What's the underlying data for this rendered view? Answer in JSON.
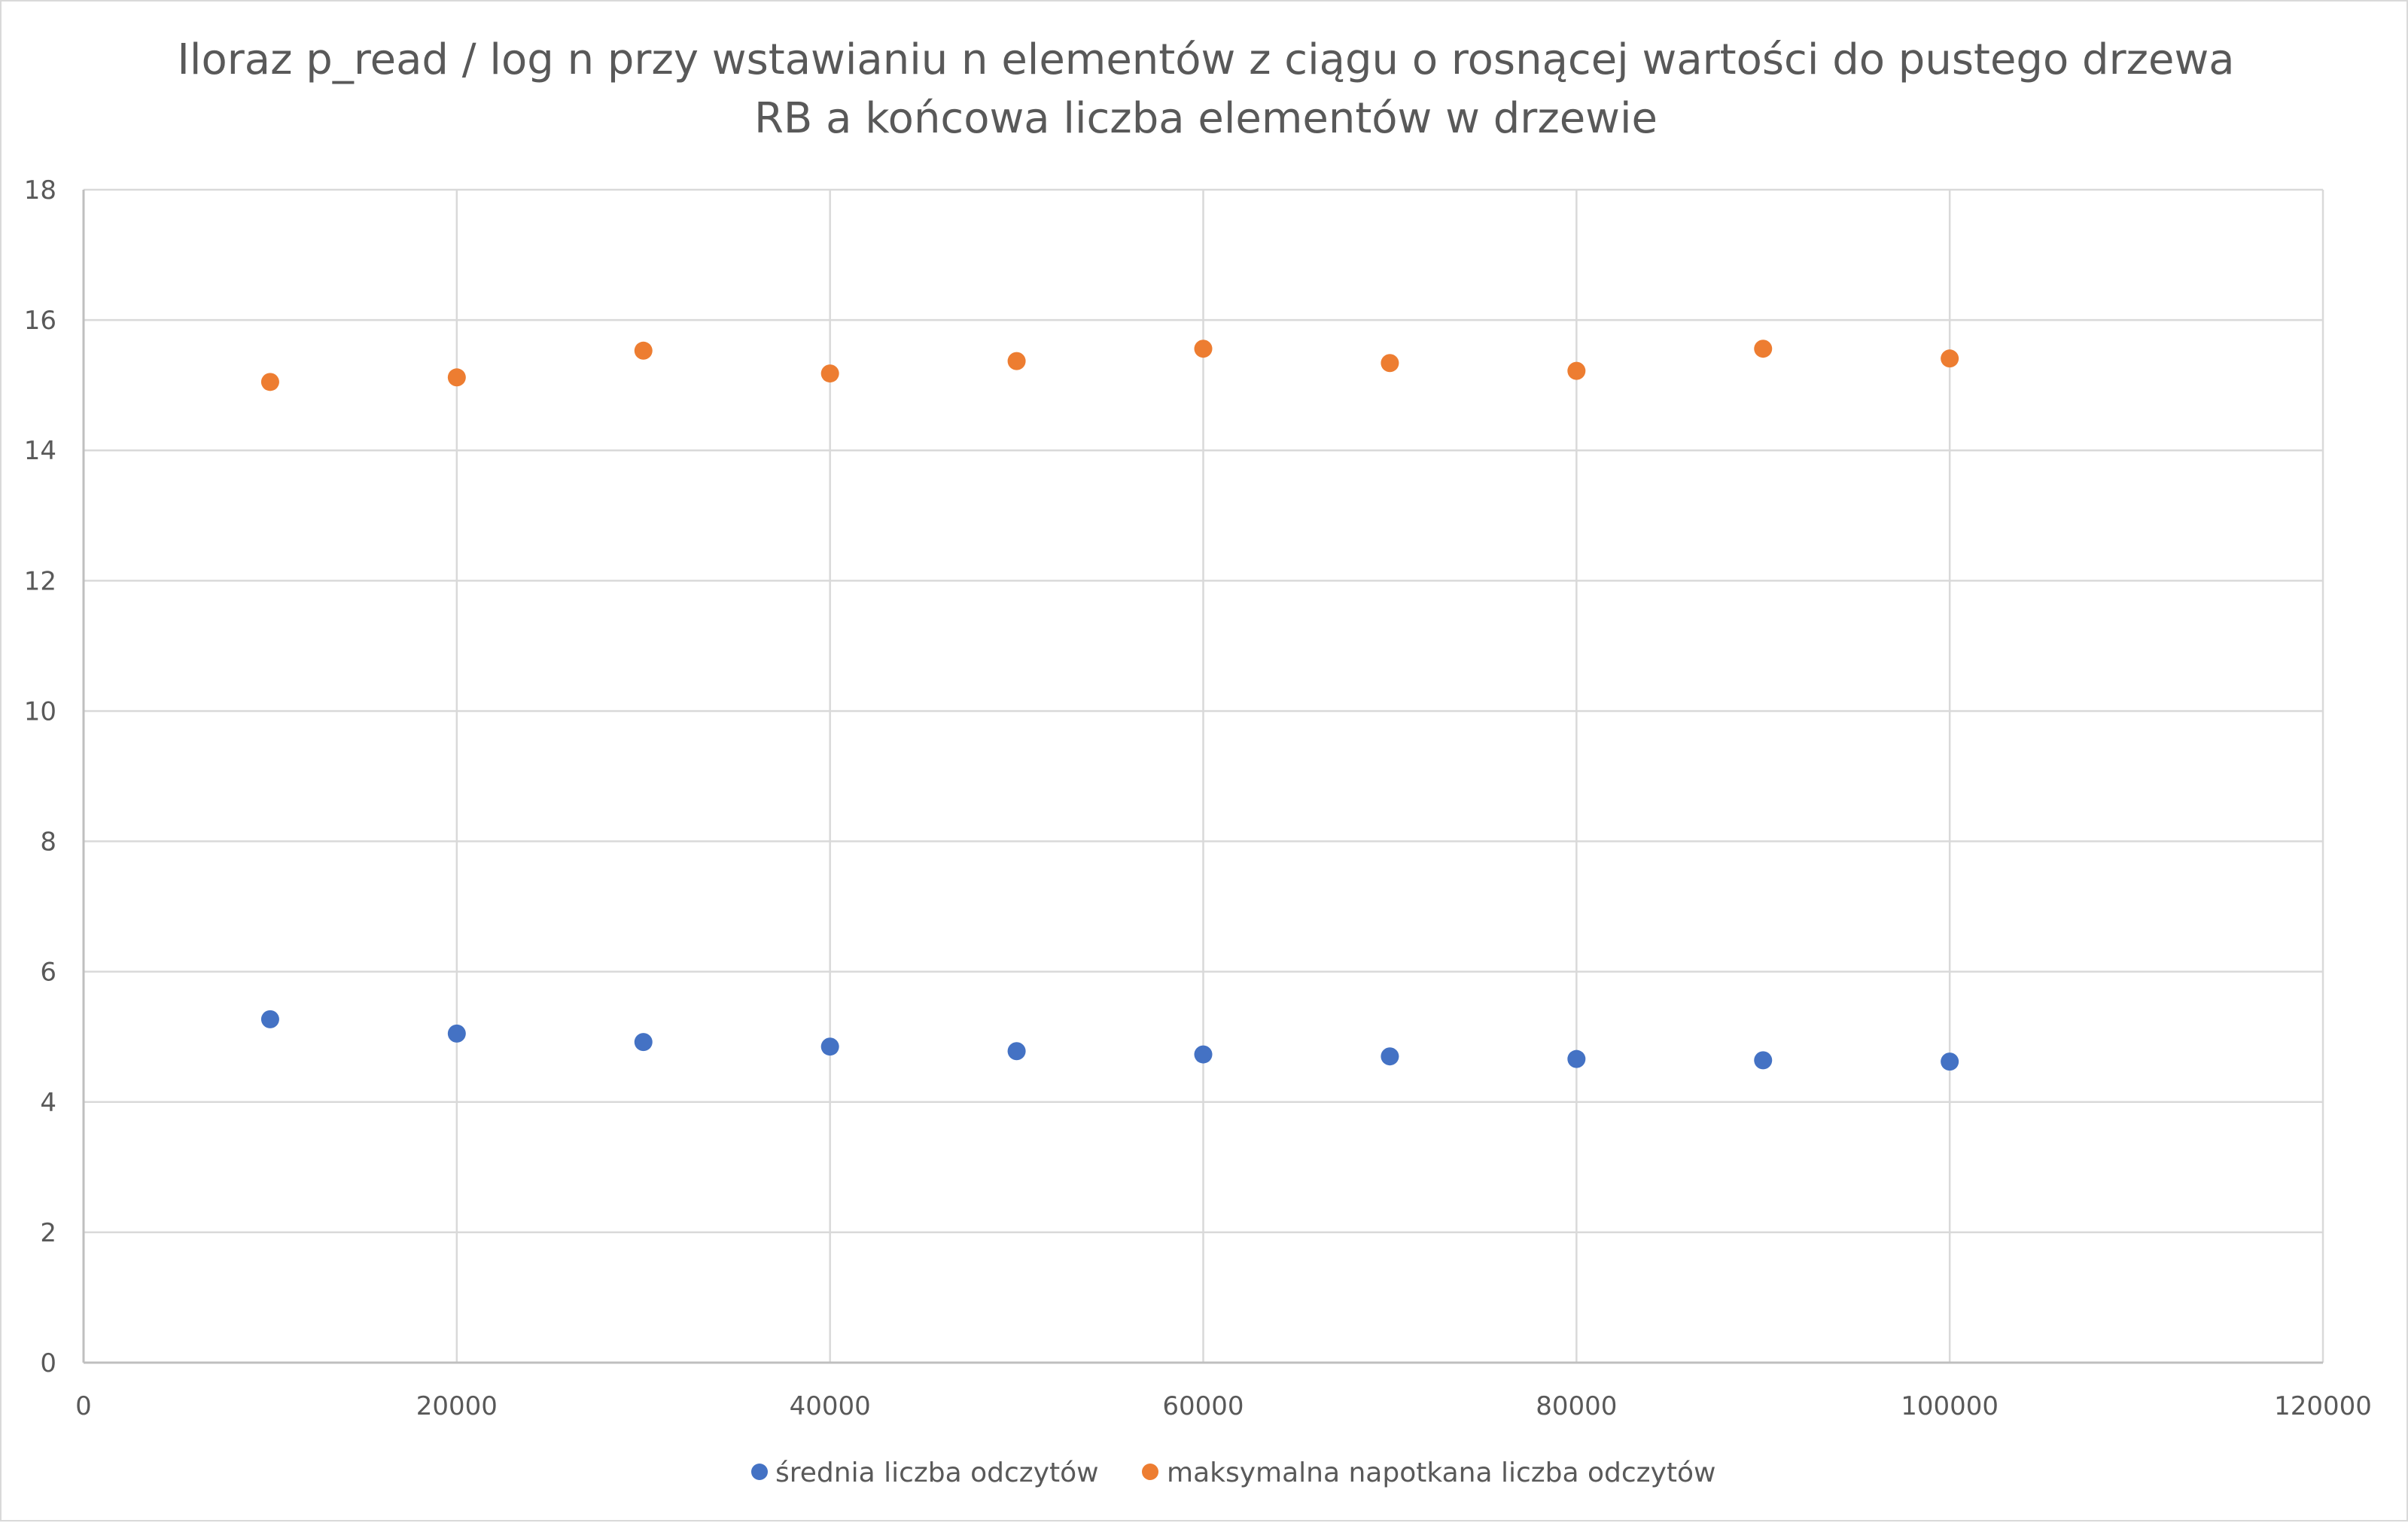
{
  "chart_data": {
    "type": "scatter",
    "title": "Iloraz p_read / log n przy wstawianiu n elementów z ciągu o rosnącej wartości do pustego drzewa RB a końcowa liczba elementów w drzewie",
    "title_lines": [
      "Iloraz p_read / log n przy wstawianiu n elementów z ciągu o rosnącej wartości do pustego drzewa",
      "RB a końcowa liczba elementów w drzewie"
    ],
    "xlabel": "",
    "ylabel": "",
    "xlim": [
      0,
      120000
    ],
    "ylim": [
      0,
      18
    ],
    "x_ticks": [
      0,
      20000,
      40000,
      60000,
      80000,
      100000,
      120000
    ],
    "y_ticks": [
      0,
      2,
      4,
      6,
      8,
      10,
      12,
      14,
      16,
      18
    ],
    "x_tick_labels": [
      "0",
      "20000",
      "40000",
      "60000",
      "80000",
      "100000",
      "120000"
    ],
    "y_tick_labels": [
      "0",
      "2",
      "4",
      "6",
      "8",
      "10",
      "12",
      "14",
      "16",
      "18"
    ],
    "grid": true,
    "legend_position": "bottom",
    "series": [
      {
        "name": "średnia liczba odczytów",
        "color": "#4472c4",
        "points": [
          {
            "x": 10000,
            "y": 5.27
          },
          {
            "x": 20000,
            "y": 5.05
          },
          {
            "x": 30000,
            "y": 4.92
          },
          {
            "x": 40000,
            "y": 4.85
          },
          {
            "x": 50000,
            "y": 4.78
          },
          {
            "x": 60000,
            "y": 4.73
          },
          {
            "x": 70000,
            "y": 4.7
          },
          {
            "x": 80000,
            "y": 4.66
          },
          {
            "x": 90000,
            "y": 4.64
          },
          {
            "x": 100000,
            "y": 4.62
          }
        ]
      },
      {
        "name": "maksymalna napotkana liczba odczytów",
        "color": "#ed7d31",
        "points": [
          {
            "x": 10000,
            "y": 15.05
          },
          {
            "x": 20000,
            "y": 15.12
          },
          {
            "x": 30000,
            "y": 15.53
          },
          {
            "x": 40000,
            "y": 15.18
          },
          {
            "x": 50000,
            "y": 15.37
          },
          {
            "x": 60000,
            "y": 15.56
          },
          {
            "x": 70000,
            "y": 15.34
          },
          {
            "x": 80000,
            "y": 15.22
          },
          {
            "x": 90000,
            "y": 15.56
          },
          {
            "x": 100000,
            "y": 15.41
          }
        ]
      }
    ]
  }
}
